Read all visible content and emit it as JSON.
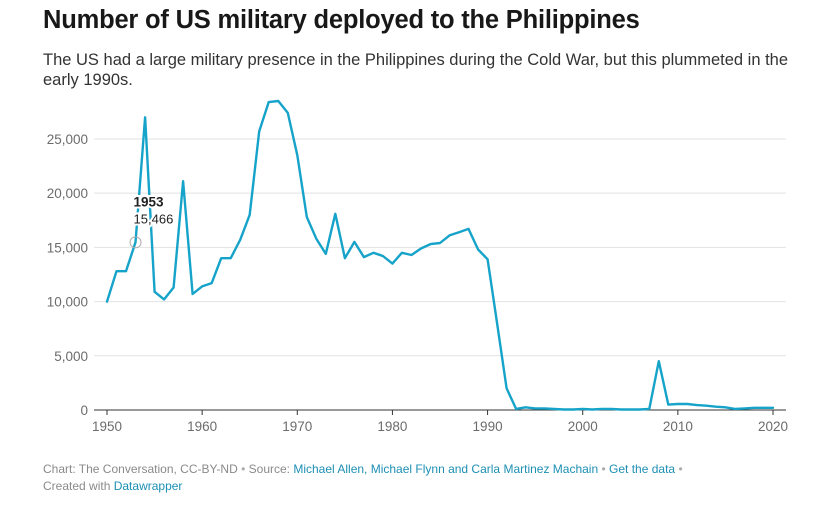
{
  "header": {
    "title": "Number of US military deployed to the Philippines",
    "subtitle": "The US had a large military presence in the Philippines during the Cold War, but this plummeted in the early 1990s."
  },
  "footer": {
    "chart_credit": "Chart: The Conversation, CC-BY-ND",
    "source_prefix": "Source:",
    "source_link": "Michael Allen, Michael Flynn and Carla Martinez Machain",
    "data_link": "Get the data",
    "created_with": "Created with",
    "tool_link": "Datawrapper",
    "separator": "•"
  },
  "chart_data": {
    "type": "line",
    "title": "Number of US military deployed to the Philippines",
    "xlabel": "",
    "ylabel": "",
    "xlim": [
      1950,
      2020
    ],
    "ylim": [
      0,
      28500
    ],
    "x_ticks": [
      1950,
      1960,
      1970,
      1980,
      1990,
      2000,
      2010,
      2020
    ],
    "y_ticks": [
      0,
      5000,
      10000,
      15000,
      20000,
      25000
    ],
    "y_tick_labels": [
      "0",
      "5,000",
      "10,000",
      "15,000",
      "20,000",
      "25,000"
    ],
    "grid": true,
    "line_color": "#16a3c9",
    "series": [
      {
        "x": [
          1950,
          1951,
          1952,
          1953,
          1954,
          1955,
          1956,
          1957,
          1958,
          1959,
          1960,
          1961,
          1962,
          1963,
          1964,
          1965,
          1966,
          1967,
          1968,
          1969,
          1970,
          1971,
          1972,
          1973,
          1974,
          1975,
          1976,
          1977,
          1978,
          1979,
          1980,
          1981,
          1982,
          1983,
          1984,
          1985,
          1986,
          1987,
          1988,
          1989,
          1990,
          1991,
          1992,
          1993,
          1994,
          1995,
          1996,
          1997,
          1998,
          1999,
          2000,
          2001,
          2002,
          2003,
          2004,
          2005,
          2006,
          2007,
          2008,
          2009,
          2010,
          2011,
          2012,
          2013,
          2014,
          2015,
          2016,
          2017,
          2018,
          2019,
          2020
        ],
        "y": [
          10000,
          12800,
          12800,
          15466,
          27000,
          10900,
          10200,
          11300,
          21100,
          10700,
          11400,
          11700,
          14000,
          14000,
          15700,
          18000,
          25700,
          28400,
          28500,
          27400,
          23500,
          17800,
          15800,
          14400,
          18100,
          14000,
          15500,
          14100,
          14500,
          14200,
          13500,
          14500,
          14300,
          14900,
          15300,
          15400,
          16100,
          16400,
          16700,
          14800,
          13900,
          8000,
          2000,
          100,
          250,
          150,
          150,
          100,
          50,
          50,
          100,
          50,
          100,
          100,
          50,
          50,
          50,
          100,
          4500,
          500,
          550,
          550,
          450,
          400,
          300,
          250,
          100,
          150,
          200,
          200,
          200
        ]
      }
    ],
    "highlight": {
      "label": "1953",
      "value_label": "15,466",
      "x": 1953,
      "y": 15466
    }
  }
}
